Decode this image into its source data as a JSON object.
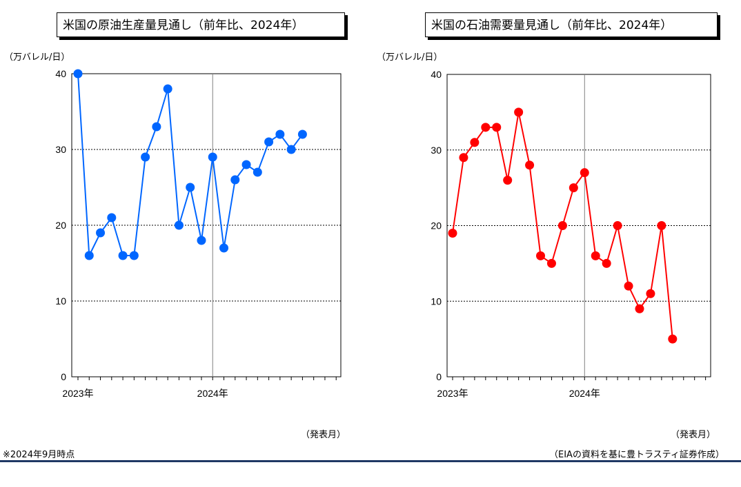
{
  "chart_data": [
    {
      "type": "line",
      "title": "米国の原油生産量見通し（前年比、2024年）",
      "unit_label": "（万バレル/日）",
      "xlabel": "（発表月）",
      "ylim": [
        0,
        40
      ],
      "yticks": [
        0,
        10,
        20,
        30,
        40
      ],
      "xtick_labels": [
        "2023年",
        "2024年"
      ],
      "grid": true,
      "color": "#0066ff",
      "series": [
        {
          "values": [
            40,
            16,
            19,
            21,
            16,
            16,
            29,
            33,
            38,
            20,
            25,
            18,
            29,
            17,
            26,
            28,
            27,
            31,
            32,
            30,
            32
          ]
        }
      ]
    },
    {
      "type": "line",
      "title": "米国の石油需要量見通し（前年比、2024年）",
      "unit_label": "（万バレル/日）",
      "xlabel": "（発表月）",
      "ylim": [
        0,
        40
      ],
      "yticks": [
        0,
        10,
        20,
        30,
        40
      ],
      "xtick_labels": [
        "2023年",
        "2024年"
      ],
      "grid": true,
      "color": "#ff0000",
      "series": [
        {
          "values": [
            19,
            29,
            31,
            33,
            33,
            26,
            35,
            28,
            16,
            15,
            20,
            25,
            27,
            16,
            15,
            20,
            12,
            9,
            11,
            20,
            5
          ]
        }
      ]
    }
  ],
  "footer": {
    "note": "※2024年9月時点",
    "source": "（EIAの資料を基に豊トラスティ証券作成）"
  }
}
